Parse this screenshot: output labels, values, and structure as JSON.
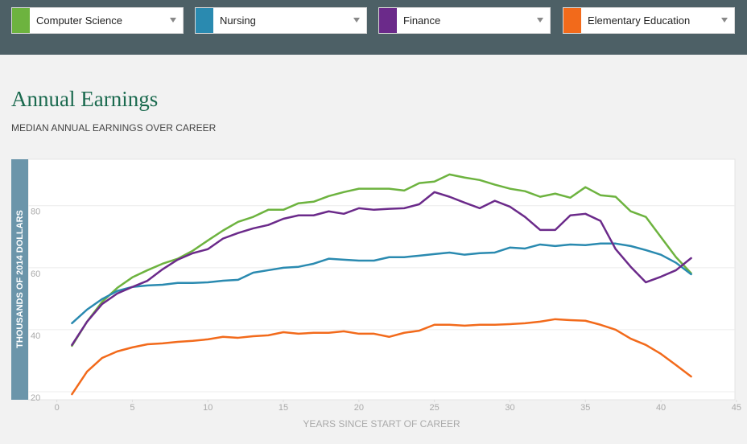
{
  "chart_data": {
    "type": "line",
    "title": "Annual Earnings",
    "subtitle": "MEDIAN ANNUAL EARNINGS OVER CAREER",
    "ylabel": "THOUSANDS OF 2014 DOLLARS",
    "xlabel": "YEARS SINCE START OF CAREER",
    "x": [
      1,
      2,
      3,
      4,
      5,
      6,
      7,
      8,
      9,
      10,
      11,
      12,
      13,
      14,
      15,
      16,
      17,
      18,
      19,
      20,
      21,
      22,
      23,
      24,
      25,
      26,
      27,
      28,
      29,
      30,
      31,
      32,
      33,
      34,
      35,
      36,
      37,
      38,
      39,
      40,
      41,
      42
    ],
    "xlim": [
      -1.9,
      44.9
    ],
    "xticks": [
      0,
      5,
      10,
      15,
      20,
      25,
      30,
      35,
      40,
      45
    ],
    "ylim": [
      17.4,
      95
    ],
    "yticks": [
      20,
      40,
      60,
      80
    ],
    "grid": true,
    "series": [
      {
        "name": "Computer Science",
        "color": "#6db33f",
        "values": [
          34.8,
          42.6,
          49,
          53.5,
          56.9,
          59.2,
          61.3,
          62.9,
          65.5,
          68.8,
          72,
          74.8,
          76.4,
          78.7,
          78.7,
          80.8,
          81.3,
          83.1,
          84.4,
          85.5,
          85.5,
          85.5,
          84.9,
          87.3,
          87.8,
          90.1,
          89.1,
          88.3,
          86.8,
          85.5,
          84.7,
          82.9,
          83.9,
          82.6,
          86,
          83.4,
          82.9,
          78.2,
          76.4,
          69.9,
          63.4,
          58.2
        ]
      },
      {
        "name": "Nursing",
        "color": "#2a8ab0",
        "values": [
          42.1,
          46.5,
          49.9,
          52.5,
          53.8,
          54.3,
          54.5,
          55.1,
          55.1,
          55.3,
          55.8,
          56.1,
          58.4,
          59.2,
          60,
          60.3,
          61.3,
          62.9,
          62.6,
          62.3,
          62.3,
          63.4,
          63.4,
          63.9,
          64.4,
          64.9,
          64.2,
          64.7,
          64.9,
          66.5,
          66.2,
          67.5,
          67,
          67.5,
          67.3,
          67.8,
          67.8,
          67,
          65.7,
          64.2,
          61.6,
          57.9
        ]
      },
      {
        "name": "Finance",
        "color": "#6b2a8a",
        "values": [
          35.1,
          42.6,
          48.3,
          51.7,
          53.8,
          55.8,
          59.5,
          62.6,
          64.7,
          66,
          69.4,
          71.2,
          72.7,
          73.8,
          75.8,
          76.9,
          76.9,
          78.2,
          77.4,
          79.2,
          78.7,
          79,
          79.2,
          80.5,
          84.4,
          82.9,
          81,
          79.2,
          81.6,
          79.7,
          76.4,
          72.2,
          72.2,
          76.9,
          77.4,
          75.1,
          66,
          60.3,
          55.3,
          57.1,
          59.2,
          63.1
        ]
      },
      {
        "name": "Elementary Education",
        "color": "#f26a1b",
        "values": [
          19.2,
          26.5,
          30.9,
          33,
          34.3,
          35.3,
          35.6,
          36.1,
          36.4,
          36.9,
          37.7,
          37.4,
          37.9,
          38.2,
          39.2,
          38.7,
          39,
          39,
          39.5,
          38.7,
          38.7,
          37.7,
          39,
          39.7,
          41.6,
          41.6,
          41.3,
          41.6,
          41.6,
          41.8,
          42.1,
          42.6,
          43.4,
          43.1,
          42.9,
          41.6,
          40,
          37.1,
          35.1,
          32.2,
          28.6,
          24.9
        ]
      }
    ]
  }
}
